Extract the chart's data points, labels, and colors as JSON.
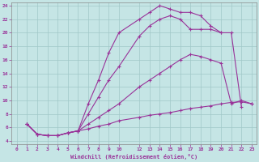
{
  "background_color": "#c5e5e5",
  "grid_color": "#a0c8c8",
  "line_color": "#993399",
  "xlabel": "Windchill (Refroidissement éolien,°C)",
  "xlim": [
    -0.5,
    23.5
  ],
  "ylim": [
    3.5,
    24.5
  ],
  "xticks": [
    0,
    1,
    2,
    3,
    4,
    5,
    6,
    7,
    8,
    9,
    10,
    12,
    13,
    14,
    15,
    16,
    17,
    18,
    19,
    20,
    21,
    22,
    23
  ],
  "yticks": [
    4,
    6,
    8,
    10,
    12,
    14,
    16,
    18,
    20,
    22,
    24
  ],
  "lines": [
    {
      "x": [
        1,
        2,
        3,
        4,
        5,
        6,
        7,
        8,
        9,
        10,
        12,
        13,
        14,
        15,
        16,
        17,
        18,
        19,
        20,
        21,
        22,
        23
      ],
      "y": [
        6.5,
        5.0,
        4.8,
        4.8,
        5.2,
        5.5,
        5.8,
        6.2,
        6.5,
        7.0,
        7.5,
        7.8,
        8.0,
        8.2,
        8.5,
        8.8,
        9.0,
        9.2,
        9.5,
        9.7,
        9.8,
        9.5
      ]
    },
    {
      "x": [
        1,
        2,
        3,
        4,
        5,
        6,
        7,
        8,
        9,
        10,
        12,
        13,
        14,
        15,
        16,
        17,
        18,
        19,
        20,
        21,
        22,
        23
      ],
      "y": [
        6.5,
        5.0,
        4.8,
        4.8,
        5.2,
        5.5,
        6.5,
        7.5,
        8.5,
        9.5,
        12.0,
        13.0,
        14.0,
        15.0,
        16.0,
        16.8,
        16.5,
        16.0,
        15.5,
        9.5,
        10.0,
        9.5
      ]
    },
    {
      "x": [
        1,
        2,
        3,
        4,
        5,
        6,
        7,
        8,
        9,
        10,
        12,
        13,
        14,
        15,
        16,
        17,
        18,
        19,
        20,
        21,
        22
      ],
      "y": [
        6.5,
        5.0,
        4.8,
        4.8,
        5.2,
        5.5,
        8.0,
        10.5,
        13.0,
        15.0,
        19.5,
        21.0,
        22.0,
        22.5,
        22.0,
        20.5,
        20.5,
        20.5,
        20.0,
        20.0,
        9.0
      ]
    },
    {
      "x": [
        1,
        2,
        3,
        4,
        5,
        6,
        7,
        8,
        9,
        10,
        12,
        13,
        14,
        15,
        16,
        17,
        18,
        19,
        20
      ],
      "y": [
        6.5,
        5.0,
        4.8,
        4.8,
        5.2,
        5.5,
        9.5,
        13.0,
        17.0,
        20.0,
        22.0,
        23.0,
        24.0,
        23.5,
        23.0,
        23.0,
        22.5,
        21.0,
        20.0
      ]
    }
  ]
}
